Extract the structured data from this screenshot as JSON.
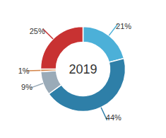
{
  "chart_data": {
    "type": "pie",
    "title": "2019",
    "values": [
      21,
      44,
      9,
      1,
      25
    ],
    "value_labels": [
      "21%",
      "44%",
      "9%",
      "1%",
      "25%"
    ],
    "colors": [
      "#4cb0d8",
      "#2e7fa8",
      "#9aabb8",
      "#d4854a",
      "#c83232"
    ],
    "data_labels": true
  }
}
